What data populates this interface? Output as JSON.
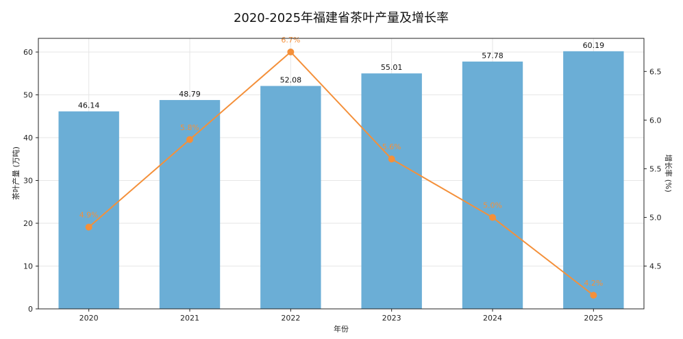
{
  "chart_data": {
    "type": "bar",
    "title": "2020-2025年福建省茶叶产量及增长率",
    "xlabel": "年份",
    "ylabel_left": "茶叶产量 (万吨)",
    "ylabel_right": "增长率 (%)",
    "categories": [
      "2020",
      "2021",
      "2022",
      "2023",
      "2024",
      "2025"
    ],
    "series": [
      {
        "type": "bar",
        "axis": "left",
        "color": "#6baed6",
        "values": [
          46.14,
          48.79,
          52.08,
          55.01,
          57.78,
          60.19
        ],
        "labels": [
          "46.14",
          "48.79",
          "52.08",
          "55.01",
          "57.78",
          "60.19"
        ]
      },
      {
        "type": "line",
        "axis": "right",
        "color": "#f4903a",
        "values": [
          4.9,
          5.8,
          6.7,
          5.6,
          5.0,
          4.2
        ],
        "labels": [
          "4.9%",
          "5.8%",
          "6.7%",
          "5.6%",
          "5.0%",
          "4.2%"
        ]
      }
    ],
    "ylim_left": [
      0,
      63.2
    ],
    "ylim_right": [
      4.06,
      6.84
    ],
    "yticks_left": [
      "0",
      "10",
      "20",
      "30",
      "40",
      "50",
      "60"
    ],
    "yticks_right": [
      "4.5",
      "5.0",
      "5.5",
      "6.0",
      "6.5"
    ],
    "grid": true
  }
}
